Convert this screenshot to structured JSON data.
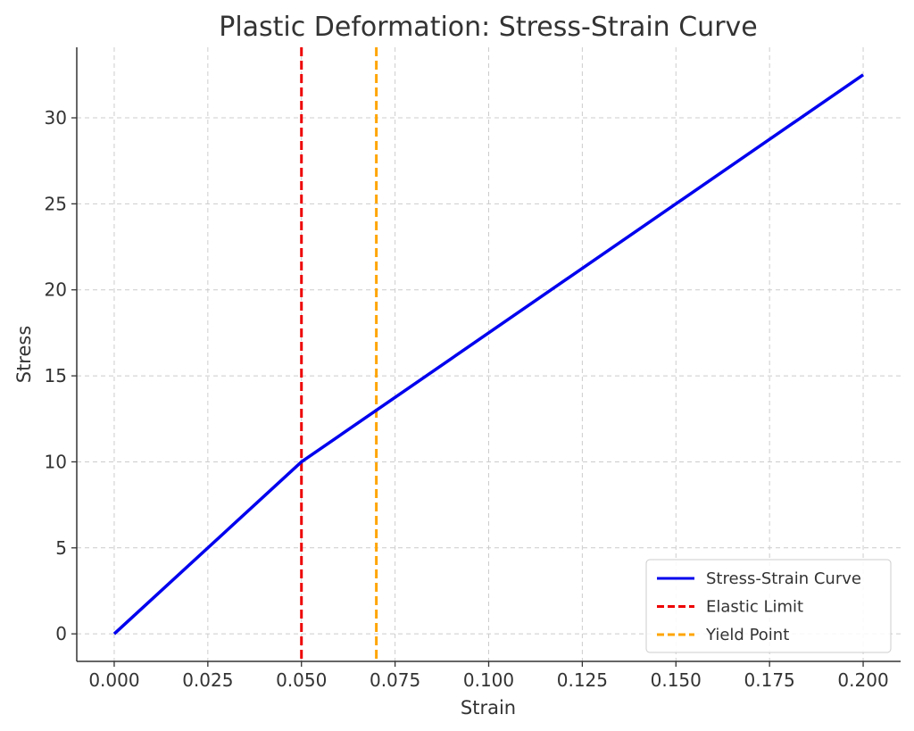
{
  "chart_data": {
    "type": "line",
    "title": "Plastic Deformation: Stress-Strain Curve",
    "xlabel": "Strain",
    "ylabel": "Stress",
    "xlim": [
      -0.01,
      0.21
    ],
    "ylim": [
      -1.6,
      34.1
    ],
    "x_ticks": [
      "0.000",
      "0.025",
      "0.050",
      "0.075",
      "0.100",
      "0.125",
      "0.150",
      "0.175",
      "0.200"
    ],
    "y_ticks": [
      "0",
      "5",
      "10",
      "15",
      "20",
      "25",
      "30"
    ],
    "grid": true,
    "legend_position": "bottom-right",
    "series": [
      {
        "name": "Stress-Strain Curve",
        "style": "solid",
        "color": "#0000ee",
        "x": [
          0.0,
          0.05,
          0.2
        ],
        "y": [
          0,
          10,
          32.5
        ]
      }
    ],
    "vertical_lines": [
      {
        "name": "Elastic Limit",
        "x": 0.05,
        "style": "dashed",
        "color": "#ee0000"
      },
      {
        "name": "Yield Point",
        "x": 0.07,
        "style": "dashed",
        "color": "#ffa500"
      }
    ]
  }
}
